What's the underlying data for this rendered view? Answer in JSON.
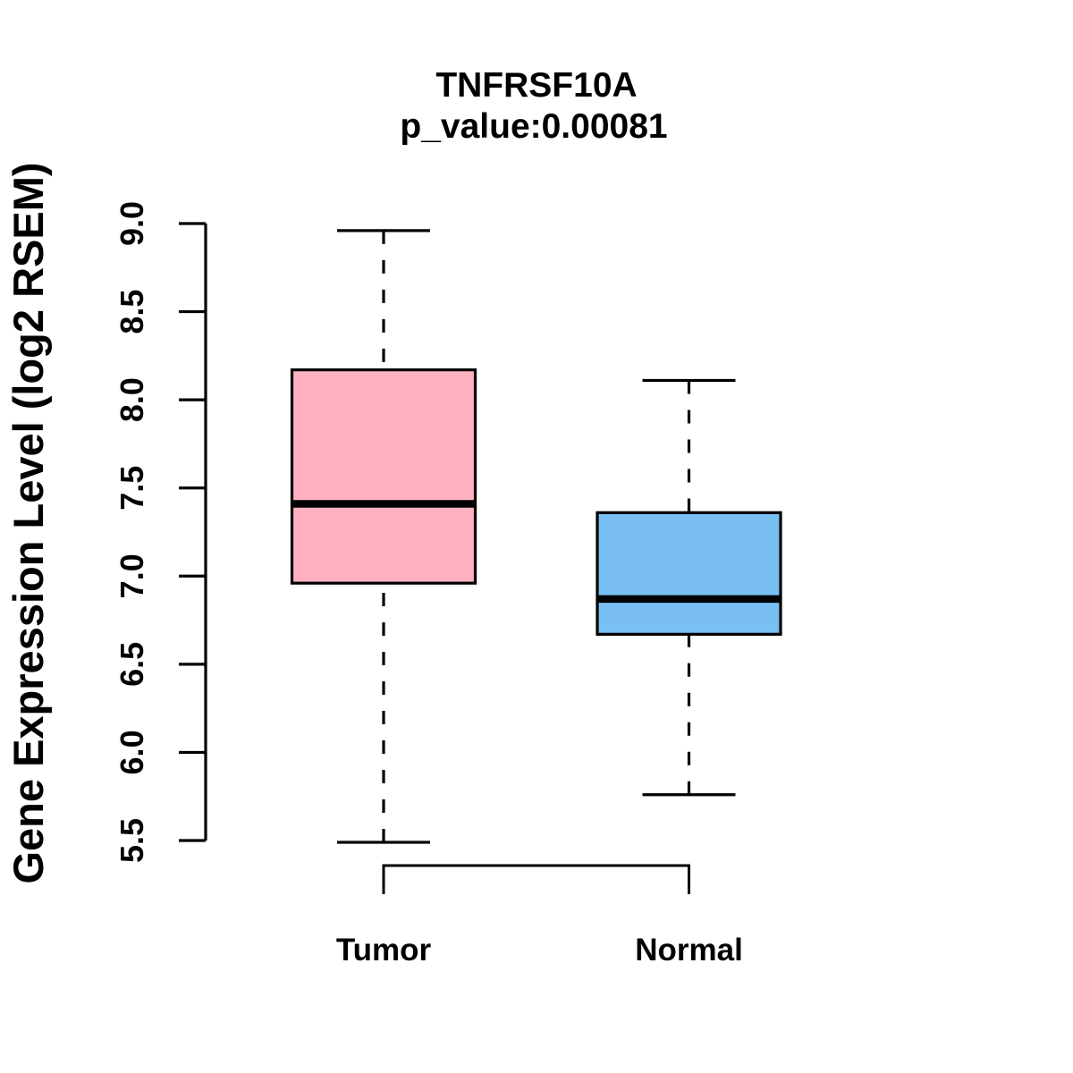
{
  "chart_data": {
    "type": "boxplot",
    "title": "TNFRSF10A",
    "subtitle": "p_value:0.00081",
    "gene": "TNFRSF10A",
    "p_value": 0.00081,
    "ylabel": "Gene Expression Level (log2 RSEM)",
    "xlabel": "",
    "ylim": [
      5.5,
      9.0
    ],
    "yticks": [
      5.5,
      6.0,
      6.5,
      7.0,
      7.5,
      8.0,
      8.5,
      9.0
    ],
    "ytick_labels": [
      "5.5",
      "6.0",
      "6.5",
      "7.0",
      "7.5",
      "8.0",
      "8.5",
      "9.0"
    ],
    "grid": false,
    "legend": "none",
    "categories": [
      "Tumor",
      "Normal"
    ],
    "series": [
      {
        "name": "Tumor",
        "fill_color": "#FFB1C1",
        "whisker_low": 5.49,
        "q1": 6.96,
        "median": 7.41,
        "q3": 8.17,
        "whisker_high": 8.96
      },
      {
        "name": "Normal",
        "fill_color": "#79BFF4",
        "whisker_low": 5.76,
        "q1": 6.67,
        "median": 6.87,
        "q3": 7.36,
        "whisker_high": 8.11
      }
    ],
    "comparison_bracket": {
      "groups": [
        "Tumor",
        "Normal"
      ]
    },
    "line_color": "#000000",
    "background_color": "#FFFFFF"
  }
}
